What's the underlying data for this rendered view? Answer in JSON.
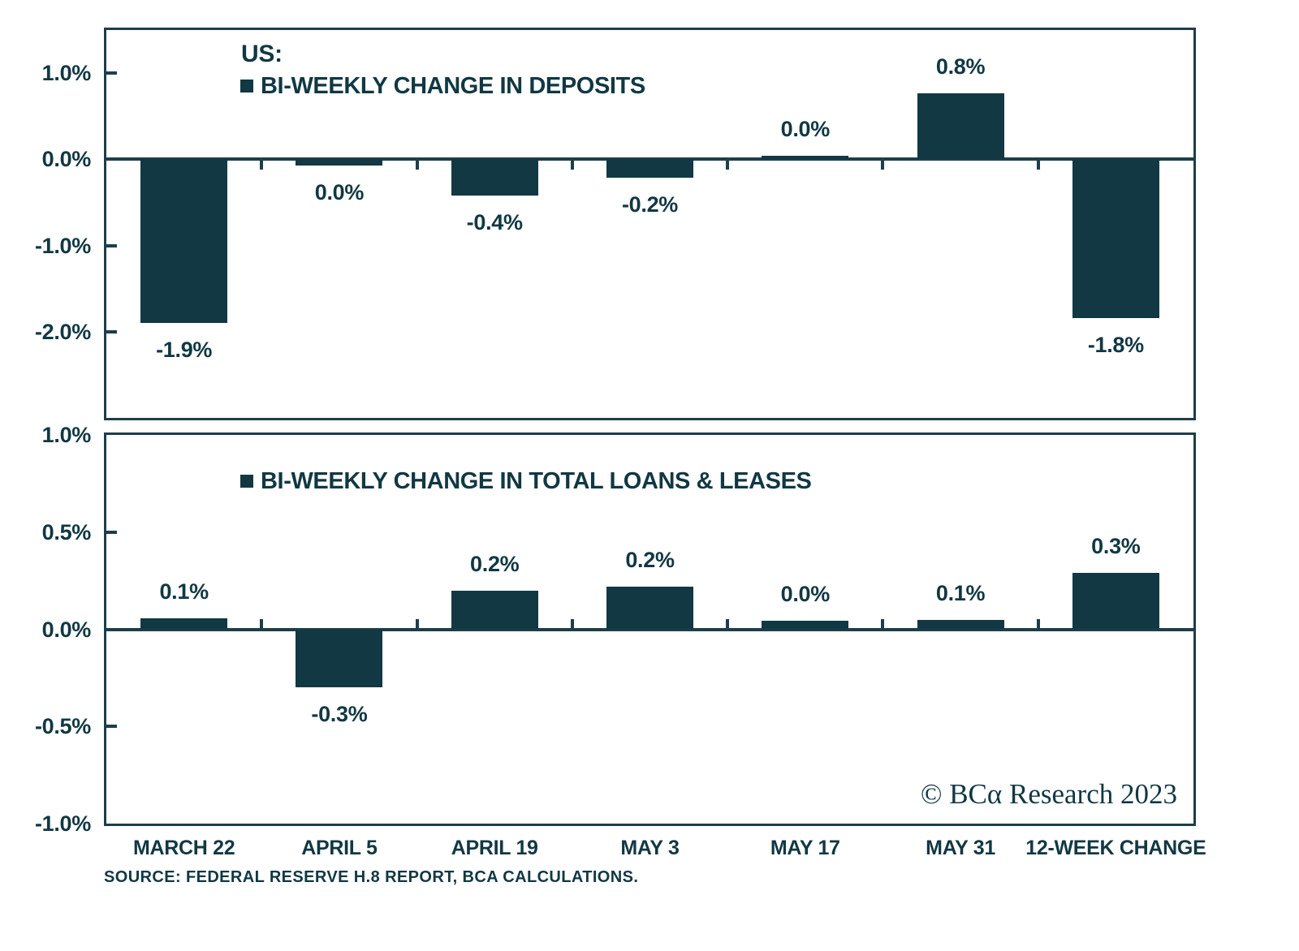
{
  "header": {
    "title": "US:"
  },
  "chart_data": [
    {
      "type": "bar",
      "legend": "BI-WEEKLY CHANGE IN DEPOSITS",
      "categories": [
        "MARCH 22",
        "APRIL 5",
        "APRIL 19",
        "MAY 3",
        "MAY 17",
        "MAY 31",
        "12-WEEK CHANGE"
      ],
      "values": [
        -1.9,
        0.0,
        -0.4,
        -0.2,
        0.0,
        0.8,
        -1.8
      ],
      "value_labels": [
        "-1.9%",
        "0.0%",
        "-0.4%",
        "-0.2%",
        "0.0%",
        "0.8%",
        "-1.8%"
      ],
      "bar_render_values": [
        -1.9,
        -0.07,
        -0.42,
        -0.21,
        0.04,
        0.77,
        -1.84
      ],
      "ylim": [
        -3.0,
        1.5
      ],
      "yticks": [
        {
          "v": 1.0,
          "label": "1.0%"
        },
        {
          "v": 0.0,
          "label": "0.0%"
        },
        {
          "v": -1.0,
          "label": "-1.0%"
        },
        {
          "v": -2.0,
          "label": "-2.0%"
        }
      ],
      "grid": false,
      "legend_position": "top-left-inside"
    },
    {
      "type": "bar",
      "legend": "BI-WEEKLY CHANGE IN TOTAL LOANS & LEASES",
      "categories": [
        "MARCH 22",
        "APRIL 5",
        "APRIL 19",
        "MAY 3",
        "MAY 17",
        "MAY 31",
        "12-WEEK CHANGE"
      ],
      "values": [
        0.1,
        -0.3,
        0.2,
        0.2,
        0.0,
        0.1,
        0.3
      ],
      "value_labels": [
        "0.1%",
        "-0.3%",
        "0.2%",
        "0.2%",
        "0.0%",
        "0.1%",
        "0.3%"
      ],
      "bar_render_values": [
        0.055,
        -0.3,
        0.2,
        0.22,
        0.045,
        0.05,
        0.29
      ],
      "ylim": [
        -1.0,
        1.0
      ],
      "yticks": [
        {
          "v": 1.0,
          "label": "1.0%"
        },
        {
          "v": 0.5,
          "label": "0.5%"
        },
        {
          "v": 0.0,
          "label": "0.0%"
        },
        {
          "v": -0.5,
          "label": "-0.5%"
        },
        {
          "v": -1.0,
          "label": "-1.0%"
        }
      ],
      "grid": false,
      "legend_position": "top-left-inside"
    }
  ],
  "footer": {
    "source": "SOURCE: FEDERAL RESERVE H.8 REPORT, BCA CALCULATIONS.",
    "copyright": "© BCα Research 2023"
  },
  "colors": {
    "bar": "#113843",
    "line": "#1e3e49",
    "text": "#113843",
    "background": "#ffffff"
  }
}
